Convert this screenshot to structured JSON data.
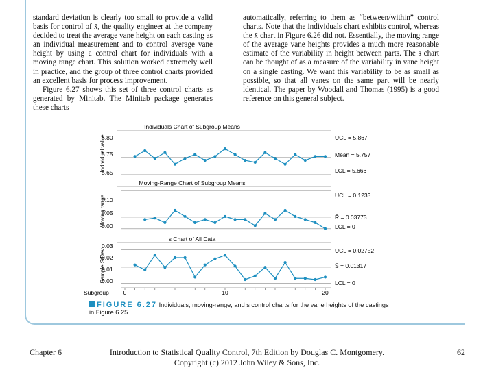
{
  "text": {
    "left_col": [
      "standard deviation is clearly too small to provide a valid basis for control of x̄, the quality engineer at the company decided to treat the average vane height on each casting as an individual measurement and to control average vane height by using a control chart for individuals with a moving range chart. This solution worked extremely well in practice, and the group of three control charts provided an excellent basis for process improvement.",
      "Figure 6.27 shows this set of three control charts as generated by Minitab. The Minitab package generates these charts"
    ],
    "right_col": [
      "automatically, referring to them as “between/within” control charts. Note that the individuals chart exhibits control, whereas the x̄ chart in Figure 6.26 did not. Essentially, the moving range of the average vane heights provides a much more reasonable estimate of the variability in height between parts. The s chart can be thought of as a measure of the variability in vane height on a single casting. We want this variability to be as small as possible, so that all vanes on the same part will be nearly identical. The paper by Woodall and Thomas (1995) is a good reference on this general subject."
    ]
  },
  "figure": {
    "panel1": {
      "title": "Individuals Chart of Subgroup Means",
      "ylabel": "Individual value",
      "ticks": [
        "5.80",
        "5.75",
        "5.65"
      ],
      "ucl": "UCL = 5.867",
      "center": "Mean = 5.757",
      "lcl": "LCL = 5.666"
    },
    "panel2": {
      "title": "Moving-Range Chart of Subgroup Means",
      "ylabel": "Moving range",
      "ticks": [
        "0.10",
        "0.05",
        "0.00"
      ],
      "ucl": "UCL = 0.1233",
      "center": "R̄ = 0.03773",
      "lcl": "LCL = 0"
    },
    "panel3": {
      "title": "s Chart of All Data",
      "ylabel": "Sample StDev",
      "ticks": [
        "0.03",
        "0.02",
        "0.01",
        "0.00"
      ],
      "ucl": "UCL = 0.02752",
      "center": "S̄ = 0.01317",
      "lcl": "LCL = 0"
    },
    "xaxis": {
      "label": "Subgroup",
      "ticks": [
        "0",
        "10",
        "20"
      ]
    }
  },
  "chart_data": [
    {
      "type": "line",
      "title": "Individuals Chart of Subgroup Means",
      "ylabel": "Individual value",
      "x": [
        1,
        2,
        3,
        4,
        5,
        6,
        7,
        8,
        9,
        10,
        11,
        12,
        13,
        14,
        15,
        16,
        17,
        18,
        19,
        20
      ],
      "values": [
        5.76,
        5.79,
        5.75,
        5.78,
        5.72,
        5.75,
        5.77,
        5.74,
        5.76,
        5.8,
        5.77,
        5.74,
        5.73,
        5.78,
        5.75,
        5.72,
        5.77,
        5.74,
        5.76,
        5.76
      ],
      "center": 5.757,
      "ucl": 5.867,
      "lcl": 5.666
    },
    {
      "type": "line",
      "title": "Moving-Range Chart of Subgroup Means",
      "ylabel": "Moving range",
      "x": [
        2,
        3,
        4,
        5,
        6,
        7,
        8,
        9,
        10,
        11,
        12,
        13,
        14,
        15,
        16,
        17,
        18,
        19,
        20
      ],
      "values": [
        0.03,
        0.035,
        0.02,
        0.06,
        0.04,
        0.02,
        0.03,
        0.02,
        0.04,
        0.03,
        0.03,
        0.01,
        0.05,
        0.03,
        0.06,
        0.04,
        0.03,
        0.02,
        0.0
      ],
      "center": 0.03773,
      "ucl": 0.1233,
      "lcl": 0
    },
    {
      "type": "line",
      "title": "s Chart of All Data",
      "ylabel": "Sample StDev",
      "x": [
        1,
        2,
        3,
        4,
        5,
        6,
        7,
        8,
        9,
        10,
        11,
        12,
        13,
        14,
        15,
        16,
        17,
        18,
        19,
        20
      ],
      "values": [
        0.015,
        0.011,
        0.023,
        0.013,
        0.021,
        0.021,
        0.005,
        0.015,
        0.02,
        0.023,
        0.014,
        0.003,
        0.006,
        0.013,
        0.004,
        0.017,
        0.004,
        0.004,
        0.003,
        0.005
      ],
      "center": 0.01317,
      "ucl": 0.02752,
      "lcl": 0
    }
  ],
  "caption": {
    "label": "FIGURE 6.27",
    "text": "Individuals, moving-range, and s control charts for the vane heights of the castings in Figure 6.25."
  },
  "footer": {
    "left": "Chapter 6",
    "center1": "Introduction to Statistical Quality Control, 7th Edition by Douglas C. Montgomery.",
    "center2": "Copyright (c) 2012  John Wiley & Sons, Inc.",
    "right": "62"
  },
  "colors": {
    "accent": "#1d8fc0",
    "line": "#1d8fc0",
    "frame": "#9ec8de"
  }
}
